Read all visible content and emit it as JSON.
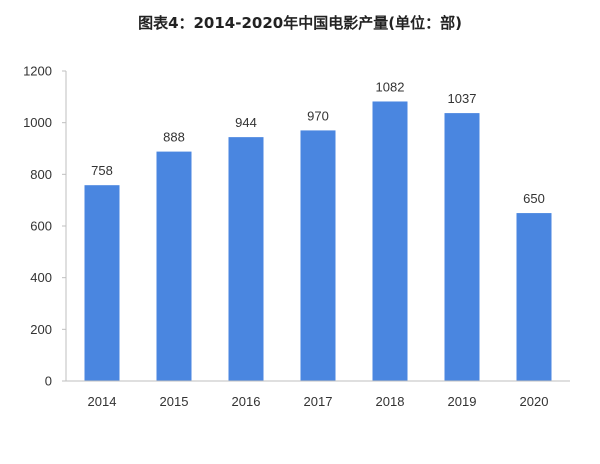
{
  "chart_data": {
    "type": "bar",
    "title": "图表4：2014-2020年中国电影产量(单位：部)",
    "categories": [
      "2014",
      "2015",
      "2016",
      "2017",
      "2018",
      "2019",
      "2020"
    ],
    "values": [
      758,
      888,
      944,
      970,
      1082,
      1037,
      650
    ],
    "data_labels": [
      "758",
      "888",
      "944",
      "970",
      "1082",
      "1037",
      "650"
    ],
    "ylim": [
      0,
      1200
    ],
    "yticks": [
      0,
      200,
      400,
      600,
      800,
      1000,
      1200
    ],
    "ytick_labels": [
      "0",
      "200",
      "400",
      "600",
      "800",
      "1000",
      "1200"
    ],
    "xlabel": "",
    "ylabel": "",
    "grid": false,
    "legend": "none",
    "bar_color": "#4a86e0"
  }
}
